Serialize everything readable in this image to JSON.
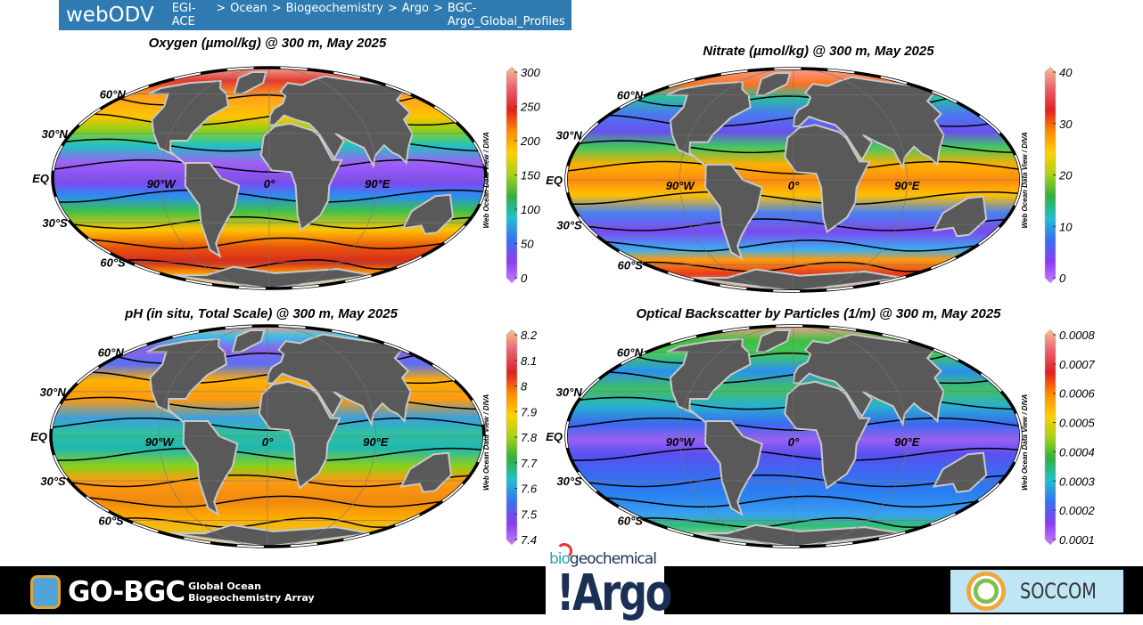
{
  "header": {
    "app_name": "webODV",
    "breadcrumb": [
      "EGI-ACE",
      ">",
      "Ocean",
      ">",
      "Biogeochemistry",
      ">",
      "Argo",
      ">",
      "BGC-Argo_Global_Profiles"
    ]
  },
  "credit": "Web Ocean Data View / DIVA",
  "lat_labels": [
    "60°N",
    "30°N",
    "EQ",
    "30°S",
    "60°S"
  ],
  "lon_labels": [
    "90°W",
    "0°",
    "90°E"
  ],
  "maps": [
    {
      "id": "oxygen",
      "title": "Oxygen (µmol/kg) @ 300 m, May 2025",
      "colorbar_ticks": [
        "0",
        "50",
        "100",
        "150",
        "200",
        "250",
        "300"
      ],
      "bands": [
        [
          "-90",
          "#d8d8d8"
        ],
        [
          "-72",
          "#ffb000"
        ],
        [
          "-60",
          "#d62a1c"
        ],
        [
          "-48",
          "#e8540c"
        ],
        [
          "-35",
          "#ffc400"
        ],
        [
          "-22",
          "#3cc04a"
        ],
        [
          "-12",
          "#2a8ff0"
        ],
        [
          "-3",
          "#7a4af0"
        ],
        [
          "10",
          "#a060f5"
        ],
        [
          "22",
          "#1fc4c0"
        ],
        [
          "32",
          "#8cd018"
        ],
        [
          "42",
          "#ffc400"
        ],
        [
          "58",
          "#ffa020"
        ],
        [
          "72",
          "#e03a30"
        ],
        [
          "90",
          "#f4a090"
        ]
      ]
    },
    {
      "id": "nitrate",
      "title": "Nitrate (µmol/kg) @ 300 m, May 2025",
      "colorbar_ticks": [
        "0",
        "10",
        "20",
        "30",
        "40"
      ],
      "bands": [
        [
          "-90",
          "#d8d8d8"
        ],
        [
          "-68",
          "#e83a18"
        ],
        [
          "-56",
          "#ff9a10"
        ],
        [
          "-48",
          "#3ab0f0"
        ],
        [
          "-35",
          "#7a4af0"
        ],
        [
          "-22",
          "#4a80f0"
        ],
        [
          "-10",
          "#ffc000"
        ],
        [
          "0",
          "#ff8a10"
        ],
        [
          "10",
          "#ffb000"
        ],
        [
          "22",
          "#40c860"
        ],
        [
          "32",
          "#6a50f0"
        ],
        [
          "45",
          "#4a7af0"
        ],
        [
          "58",
          "#28c0a0"
        ],
        [
          "70",
          "#ff7020"
        ],
        [
          "90",
          "#f4a090"
        ]
      ]
    },
    {
      "id": "ph",
      "title": "pH (in situ, Total Scale) @ 300 m, May 2025",
      "colorbar_ticks": [
        "7.4",
        "7.5",
        "7.6",
        "7.7",
        "7.8",
        "7.9",
        "8",
        "8.1",
        "8.2"
      ],
      "bands": [
        [
          "-90",
          "#d8d8d8"
        ],
        [
          "-70",
          "#e8c020"
        ],
        [
          "-60",
          "#ffb000"
        ],
        [
          "-45",
          "#f08a10"
        ],
        [
          "-30",
          "#ff9a10"
        ],
        [
          "-20",
          "#8cd018"
        ],
        [
          "-8",
          "#20b8b0"
        ],
        [
          "2",
          "#30c0a0"
        ],
        [
          "12",
          "#3aa0e0"
        ],
        [
          "25",
          "#ff9a10"
        ],
        [
          "38",
          "#ffb000"
        ],
        [
          "50",
          "#5a70f0"
        ],
        [
          "62",
          "#8a60f0"
        ],
        [
          "75",
          "#3cc0e0"
        ],
        [
          "90",
          "#f4a090"
        ]
      ]
    },
    {
      "id": "backscatter",
      "title": "Optical Backscatter by Particles (1/m) @ 300 m, May 2025",
      "colorbar_ticks": [
        "0.0001",
        "0.0002",
        "0.0003",
        "0.0004",
        "0.0005",
        "0.0006",
        "0.0007",
        "0.0008"
      ],
      "bands": [
        [
          "-90",
          "#d8d8d8"
        ],
        [
          "-65",
          "#30c070"
        ],
        [
          "-55",
          "#3aa0f0"
        ],
        [
          "-40",
          "#2a80f0"
        ],
        [
          "-25",
          "#3a6af0"
        ],
        [
          "-12",
          "#5a50f0"
        ],
        [
          "-2",
          "#9a60f5"
        ],
        [
          "8",
          "#3a6af0"
        ],
        [
          "20",
          "#28b0d0"
        ],
        [
          "32",
          "#40c060"
        ],
        [
          "45",
          "#2a90f0"
        ],
        [
          "58",
          "#40c860"
        ],
        [
          "70",
          "#3cc040"
        ],
        [
          "90",
          "#f4a090"
        ]
      ]
    }
  ],
  "footer": {
    "gobgc_name": "GO-BGC",
    "gobgc_line1": "Global Ocean",
    "gobgc_line2": "Biogeochemistry Array",
    "argo_prefix": "bio",
    "argo_suffix": "geochemical",
    "argo_name": "!Argo",
    "soccom_name": "SOCCOM"
  }
}
